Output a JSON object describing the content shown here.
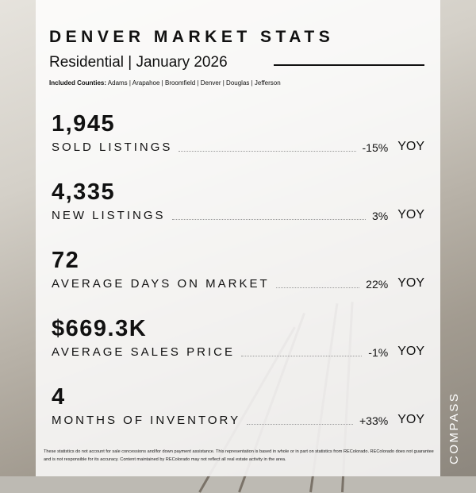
{
  "header": {
    "title": "DENVER MARKET STATS",
    "subtitle": "Residential | January 2026",
    "counties_label": "Included Counties:",
    "counties": "Adams | Arapahoe | Broomfield | Denver | Douglas | Jefferson"
  },
  "stats": [
    {
      "value": "1,945",
      "label": "SOLD LISTINGS",
      "change": "-15%",
      "suffix": "YOY"
    },
    {
      "value": "4,335",
      "label": "NEW LISTINGS",
      "change": "3%",
      "suffix": "YOY"
    },
    {
      "value": "72",
      "label": "AVERAGE DAYS ON MARKET",
      "change": "22%",
      "suffix": "YOY"
    },
    {
      "value": "$669.3K",
      "label": "AVERAGE SALES PRICE",
      "change": "-1%",
      "suffix": "YOY"
    },
    {
      "value": "4",
      "label": "MONTHS OF INVENTORY",
      "change": "+33%",
      "suffix": "YOY"
    }
  ],
  "footer": "These statistics do not account for sale concessions and/for down payment assistance. This representation is based in whole or in part on statistics from REColorado. REColorado does not guarantee and is not responsible for its accuracy. Content maintained by REColorado may not reflect all real estate activity in the area.",
  "brand": "COMPASS"
}
